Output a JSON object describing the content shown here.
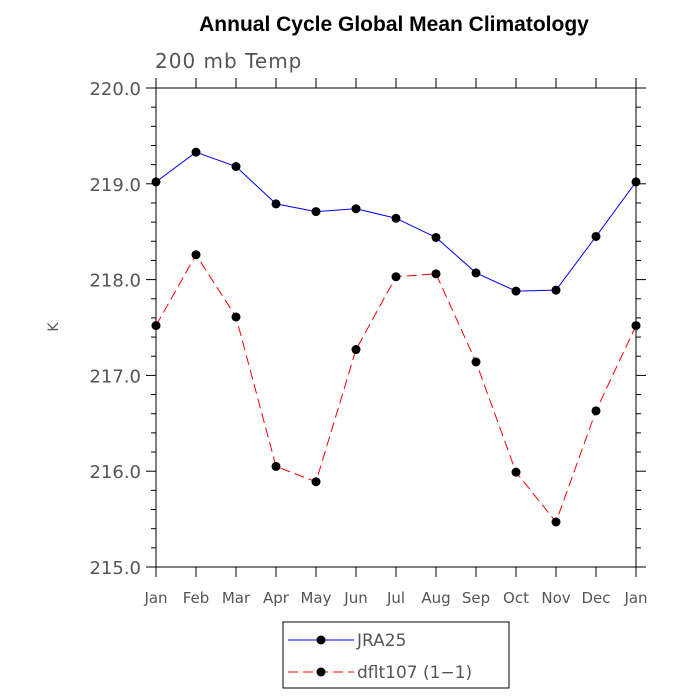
{
  "chart_data": {
    "type": "line",
    "title": "Annual Cycle Global Mean Climatology",
    "subtitle": "200 mb Temp",
    "xlabel": "",
    "ylabel": "K",
    "categories": [
      "Jan",
      "Feb",
      "Mar",
      "Apr",
      "May",
      "Jun",
      "Jul",
      "Aug",
      "Sep",
      "Oct",
      "Nov",
      "Dec",
      "Jan"
    ],
    "ylim": [
      215.0,
      220.0
    ],
    "yticks": [
      215.0,
      216.0,
      217.0,
      218.0,
      219.0,
      220.0
    ],
    "ytick_labels": [
      "215.0",
      "216.0",
      "217.0",
      "218.0",
      "219.0",
      "220.0"
    ],
    "legend_position": "bottom-center",
    "series": [
      {
        "name": "JRA25",
        "color": "#0000ff",
        "dashed": false,
        "values": [
          219.02,
          219.33,
          219.18,
          218.79,
          218.71,
          218.74,
          218.64,
          218.44,
          218.07,
          217.88,
          217.89,
          218.45,
          219.02
        ]
      },
      {
        "name": "dflt107 (1−1)",
        "color": "#ff0000",
        "dashed": true,
        "values": [
          217.52,
          218.26,
          217.61,
          216.05,
          215.89,
          217.27,
          218.03,
          218.06,
          217.14,
          215.99,
          215.47,
          216.63,
          217.52
        ]
      }
    ]
  }
}
